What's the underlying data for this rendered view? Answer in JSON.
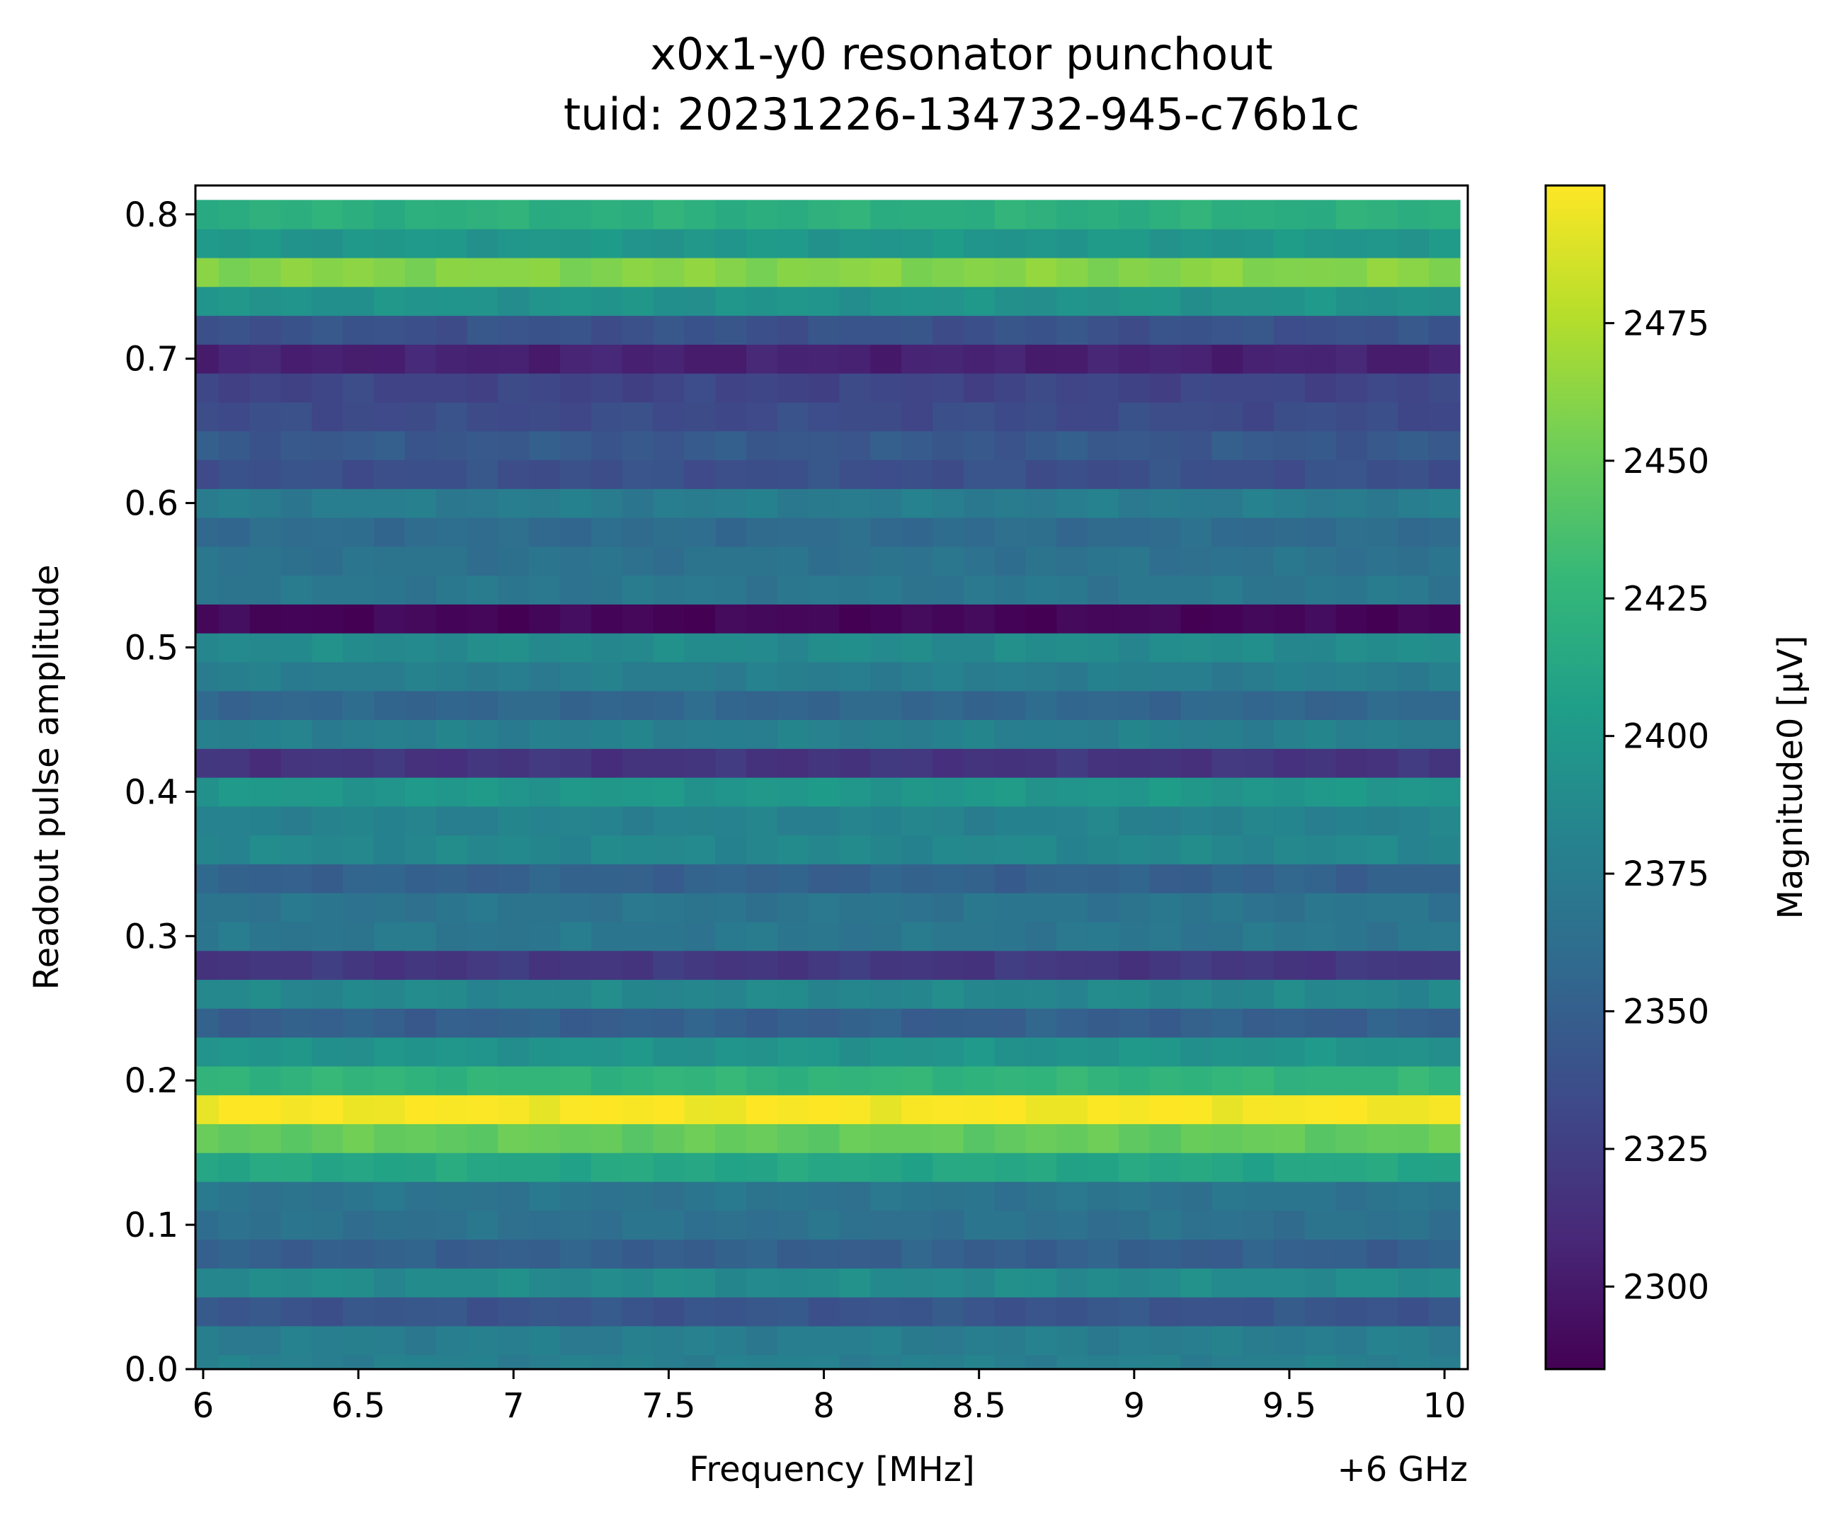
{
  "chart_data": {
    "type": "heatmap",
    "title": "x0x1-y0 resonator punchout",
    "subtitle": "tuid: 20231226-134732-945-c76b1c",
    "xlabel": "Frequency [MHz]",
    "x_offset_label": "+6 GHz",
    "ylabel": "Readout pulse amplitude",
    "colorbar_label": "Magnitude0 [µV]",
    "colormap": "viridis",
    "xlim": [
      5.975,
      10.075
    ],
    "ylim": [
      0.0,
      0.82
    ],
    "clim": [
      2285,
      2500
    ],
    "x_ticks": [
      "6",
      "6.5",
      "7",
      "7.5",
      "8",
      "8.5",
      "9",
      "9.5",
      "10"
    ],
    "y_ticks": [
      "0.0",
      "0.1",
      "0.2",
      "0.3",
      "0.4",
      "0.5",
      "0.6",
      "0.7",
      "0.8"
    ],
    "colorbar_ticks": [
      "2300",
      "2325",
      "2350",
      "2375",
      "2400",
      "2425",
      "2450",
      "2475"
    ],
    "x_start": 6.0,
    "x_step": 0.1,
    "x_count": 41,
    "y_start": 0.0,
    "y_step": 0.02,
    "y_count": 41,
    "row_mean_magnitude": [
      2378,
      2376,
      2342,
      2388,
      2350,
      2365,
      2368,
      2412,
      2448,
      2498,
      2425,
      2395,
      2350,
      2385,
      2320,
      2370,
      2368,
      2352,
      2385,
      2380,
      2398,
      2318,
      2378,
      2356,
      2376,
      2388,
      2288,
      2370,
      2366,
      2360,
      2375,
      2338,
      2345,
      2335,
      2330,
      2305,
      2340,
      2395,
      2460,
      2398,
      2420
    ],
    "column_variation_amplitude": 6
  }
}
